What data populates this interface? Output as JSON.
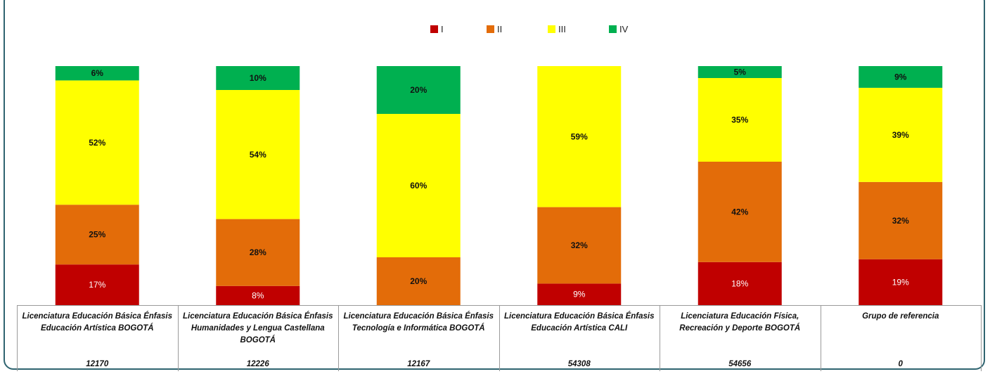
{
  "chart_data": {
    "type": "bar",
    "stacked": true,
    "percent": true,
    "legend_position": "top-center",
    "series": [
      {
        "name": "I",
        "color": "#c00000",
        "values": [
          17,
          8,
          0,
          9,
          18,
          19
        ]
      },
      {
        "name": "II",
        "color": "#e36c09",
        "values": [
          25,
          28,
          20,
          32,
          42,
          32
        ]
      },
      {
        "name": "III",
        "color": "#ffff00",
        "values": [
          52,
          54,
          60,
          59,
          35,
          39
        ]
      },
      {
        "name": "IV",
        "color": "#00b050",
        "values": [
          6,
          10,
          20,
          0,
          5,
          9
        ]
      }
    ],
    "categories": [
      {
        "label": "Licenciatura Educación Básica Énfasis Educación  Artística BOGOTÁ",
        "code": "12170"
      },
      {
        "label": "Licenciatura Educación Básica Énfasis Humanidades y Lengua Castellana BOGOTÁ",
        "code": "12226"
      },
      {
        "label": "Licenciatura Educación Básica Énfasis Tecnología e Informática BOGOTÁ",
        "code": "12167"
      },
      {
        "label": "Licenciatura Educación Básica Énfasis Educación Artística CALI",
        "code": "54308"
      },
      {
        "label": "Licenciatura  Educación Física, Recreación y Deporte BOGOTÁ",
        "code": "54656"
      },
      {
        "label": "Grupo de referencia",
        "code": "0"
      }
    ]
  }
}
